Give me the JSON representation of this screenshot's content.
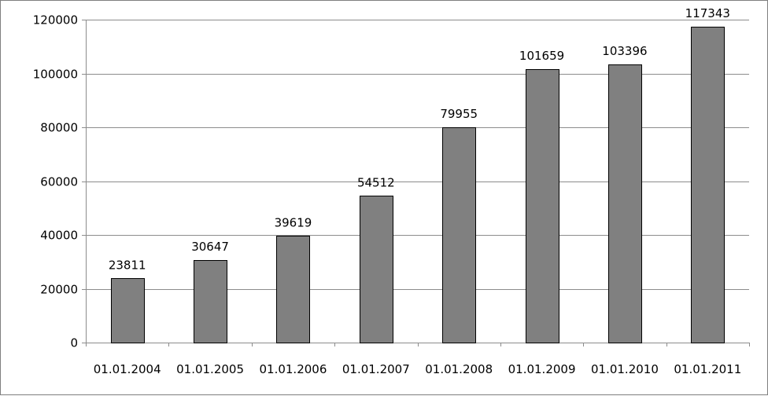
{
  "chart_data": {
    "type": "bar",
    "categories": [
      "01.01.2004",
      "01.01.2005",
      "01.01.2006",
      "01.01.2007",
      "01.01.2008",
      "01.01.2009",
      "01.01.2010",
      "01.01.2011"
    ],
    "values": [
      23811,
      30647,
      39619,
      54512,
      79955,
      101659,
      103396,
      117343
    ],
    "data_labels": [
      "23811",
      "30647",
      "39619",
      "54512",
      "79955",
      "101659",
      "103396",
      "117343"
    ],
    "y_ticks": [
      "0",
      "20000",
      "40000",
      "60000",
      "80000",
      "100000",
      "120000"
    ],
    "y_tick_values": [
      0,
      20000,
      40000,
      60000,
      80000,
      100000,
      120000
    ],
    "ylim": [
      0,
      120000
    ],
    "title": "",
    "xlabel": "",
    "ylabel": "",
    "grid": true,
    "legend": false,
    "colors": {
      "bar_fill": "#808080",
      "bar_stroke": "#000000",
      "gridline": "#8c8c8c",
      "axis": "#8c8c8c"
    }
  }
}
